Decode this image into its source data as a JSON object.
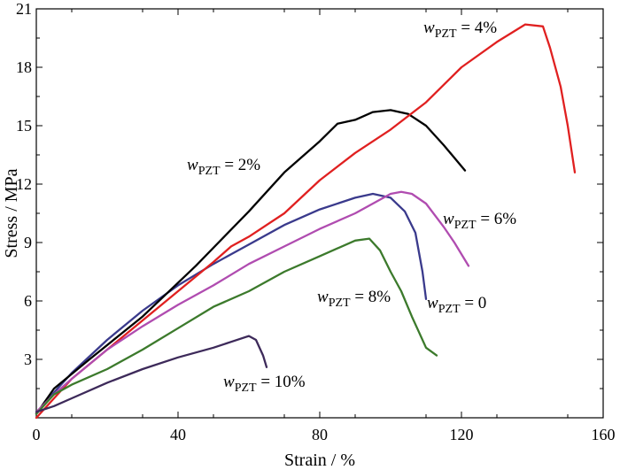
{
  "chart_data": {
    "type": "line",
    "xlabel": "Strain / %",
    "ylabel": "Stress / MPa",
    "xlim": [
      0,
      160
    ],
    "ylim": [
      0,
      21
    ],
    "xticks": [
      0,
      40,
      80,
      120,
      160
    ],
    "yticks": [
      3,
      6,
      9,
      12,
      15,
      18,
      21
    ],
    "grid": false,
    "series": [
      {
        "name": "0",
        "label_var": "w",
        "label_sub": "PZT",
        "label_value": "= 0",
        "color": "#3a3a8c",
        "x": [
          0,
          5,
          10,
          20,
          30,
          40,
          50,
          60,
          70,
          80,
          90,
          95,
          100,
          104,
          107,
          109,
          110
        ],
        "y": [
          0.2,
          1.3,
          2.3,
          4.0,
          5.5,
          6.8,
          7.9,
          8.9,
          9.9,
          10.7,
          11.3,
          11.5,
          11.3,
          10.6,
          9.5,
          7.5,
          6.1
        ]
      },
      {
        "name": "2%",
        "label_var": "w",
        "label_sub": "PZT",
        "label_value": "= 2%",
        "color": "#000000",
        "x": [
          0,
          5,
          15,
          30,
          45,
          60,
          70,
          80,
          85,
          90,
          95,
          100,
          105,
          110,
          115,
          121
        ],
        "y": [
          0.2,
          1.5,
          3.0,
          5.2,
          7.8,
          10.6,
          12.6,
          14.2,
          15.1,
          15.3,
          15.7,
          15.8,
          15.6,
          15.0,
          14.0,
          12.7
        ]
      },
      {
        "name": "4%",
        "label_var": "w",
        "label_sub": "PZT",
        "label_value": "= 4%",
        "color": "#e02020",
        "x": [
          0,
          5,
          10,
          20,
          30,
          40,
          50,
          55,
          60,
          70,
          80,
          90,
          100,
          110,
          120,
          130,
          138,
          143,
          145,
          148,
          150,
          152
        ],
        "y": [
          0.0,
          1.0,
          2.0,
          3.5,
          5.0,
          6.5,
          8.0,
          8.8,
          9.3,
          10.5,
          12.2,
          13.6,
          14.8,
          16.2,
          18.0,
          19.3,
          20.2,
          20.1,
          19.0,
          17.0,
          15.0,
          12.6
        ]
      },
      {
        "name": "6%",
        "label_var": "w",
        "label_sub": "PZT",
        "label_value": "= 6%",
        "color": "#b04cb0",
        "x": [
          0,
          5,
          10,
          20,
          30,
          40,
          50,
          60,
          70,
          80,
          90,
          95,
          100,
          103,
          106,
          110,
          115,
          118,
          122
        ],
        "y": [
          0.3,
          1.2,
          2.0,
          3.5,
          4.7,
          5.8,
          6.8,
          7.9,
          8.8,
          9.7,
          10.5,
          11.0,
          11.5,
          11.6,
          11.5,
          11.0,
          9.8,
          9.0,
          7.8
        ]
      },
      {
        "name": "8%",
        "label_var": "w",
        "label_sub": "PZT",
        "label_value": "= 8%",
        "color": "#3c7a2c",
        "x": [
          0,
          5,
          10,
          20,
          30,
          40,
          50,
          60,
          70,
          80,
          90,
          94,
          97,
          100,
          103,
          106,
          108,
          110,
          113
        ],
        "y": [
          0.2,
          1.2,
          1.7,
          2.5,
          3.5,
          4.6,
          5.7,
          6.5,
          7.5,
          8.3,
          9.1,
          9.2,
          8.6,
          7.5,
          6.5,
          5.2,
          4.4,
          3.6,
          3.2
        ]
      },
      {
        "name": "10%",
        "label_var": "w",
        "label_sub": "PZT",
        "label_value": "= 10%",
        "color": "#3d2a5a",
        "x": [
          0,
          5,
          10,
          20,
          30,
          40,
          50,
          55,
          60,
          62,
          64,
          65
        ],
        "y": [
          0.3,
          0.6,
          1.0,
          1.8,
          2.5,
          3.1,
          3.6,
          3.9,
          4.2,
          4.0,
          3.2,
          2.6
        ]
      }
    ]
  }
}
